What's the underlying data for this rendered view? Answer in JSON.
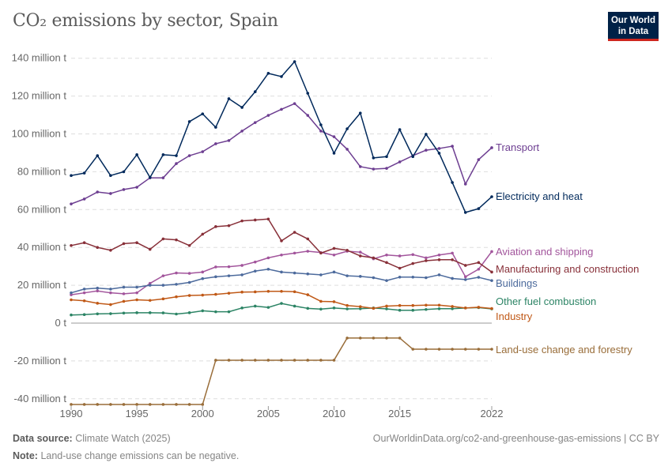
{
  "header": {
    "title": "CO₂ emissions by sector, Spain",
    "logo_line1": "Our World",
    "logo_line2": "in Data"
  },
  "footer": {
    "source_label": "Data source:",
    "source": "Climate Watch (2025)",
    "url": "OurWorldinData.org/co2-and-greenhouse-gas-emissions | CC BY",
    "note_label": "Note:",
    "note": "Land-use change emissions can be negative."
  },
  "chart_data": {
    "type": "line",
    "title": "CO₂ emissions by sector, Spain",
    "ylim": [
      -40,
      140
    ],
    "y_ticks": [
      {
        "v": 140,
        "label": "140 million t"
      },
      {
        "v": 120,
        "label": "120 million t"
      },
      {
        "v": 100,
        "label": "100 million t"
      },
      {
        "v": 80,
        "label": "80 million t"
      },
      {
        "v": 60,
        "label": "60 million t"
      },
      {
        "v": 40,
        "label": "40 million t"
      },
      {
        "v": 20,
        "label": "20 million t"
      },
      {
        "v": 0,
        "label": "0 t"
      },
      {
        "v": -20,
        "label": "-20 million t"
      },
      {
        "v": -40,
        "label": "-40 million t"
      }
    ],
    "x_ticks": [
      "1990",
      "1995",
      "2000",
      "2005",
      "2010",
      "2015",
      "2022"
    ],
    "xlim": [
      1990,
      2022
    ],
    "grid": true,
    "legend": "right-labels",
    "x": [
      1990,
      1991,
      1992,
      1993,
      1994,
      1995,
      1996,
      1997,
      1998,
      1999,
      2000,
      2001,
      2002,
      2003,
      2004,
      2005,
      2006,
      2007,
      2008,
      2009,
      2010,
      2011,
      2012,
      2013,
      2014,
      2015,
      2016,
      2017,
      2018,
      2019,
      2020,
      2021,
      2022
    ],
    "series": [
      {
        "name": "Transport",
        "color": "#6d3e91",
        "values": [
          63,
          65.6,
          69.3,
          68.5,
          70.6,
          71.8,
          76.8,
          76.8,
          84.3,
          88.5,
          90.6,
          94.8,
          96.5,
          101.5,
          106,
          109.8,
          113,
          116,
          109.8,
          101.5,
          98.5,
          91.9,
          82.7,
          81.4,
          81.8,
          85.2,
          88.5,
          91.4,
          92.3,
          93.5,
          73.5,
          86.4,
          92.7
        ]
      },
      {
        "name": "Electricity and heat",
        "color": "#00295b",
        "values": [
          78,
          79.3,
          88.5,
          78,
          80,
          89,
          77,
          89,
          88.5,
          106.5,
          110.6,
          103.5,
          118.6,
          114,
          122.3,
          132,
          130.3,
          138.2,
          121.5,
          104.8,
          89.8,
          102.7,
          111,
          87.3,
          88,
          102.3,
          88,
          99.8,
          89.8,
          74.3,
          58.5,
          60.5,
          66.8
        ]
      },
      {
        "name": "Aviation and shipping",
        "color": "#a2559c",
        "values": [
          15,
          16,
          17,
          16,
          15.5,
          16,
          21,
          25,
          26.5,
          26.3,
          27,
          29.7,
          29.8,
          30.5,
          32.3,
          34.5,
          36,
          37,
          38,
          37.3,
          36,
          38,
          37.5,
          34,
          36,
          35.5,
          36.2,
          34.5,
          36,
          37,
          24.5,
          28.5,
          37.8
        ]
      },
      {
        "name": "Manufacturing and construction",
        "color": "#883039",
        "values": [
          41,
          42.5,
          40,
          38.5,
          42,
          42.5,
          39,
          44.5,
          44,
          41,
          47,
          51,
          51.5,
          54,
          54.5,
          55,
          43.5,
          48,
          44.5,
          37,
          39.5,
          38.5,
          35.5,
          34.5,
          32,
          29,
          31.5,
          33,
          33.5,
          33.5,
          30.5,
          32,
          27
        ]
      },
      {
        "name": "Buildings",
        "color": "#4c6a9c",
        "values": [
          16,
          18,
          18.5,
          18,
          19,
          19,
          20,
          20,
          20.5,
          21.5,
          23.5,
          24.5,
          25,
          25.5,
          27.5,
          28.5,
          27,
          26.5,
          26,
          25.5,
          27,
          25,
          24.7,
          24,
          22.5,
          24.3,
          24.3,
          24,
          25.5,
          23.6,
          23,
          24.2,
          22.5
        ]
      },
      {
        "name": "Other fuel combustion",
        "color": "#2c8465",
        "values": [
          4.3,
          4.5,
          4.9,
          5,
          5.3,
          5.5,
          5.5,
          5.4,
          4.8,
          5.5,
          6.5,
          6,
          6,
          8,
          9,
          8.3,
          10.4,
          9,
          7.8,
          7.4,
          8,
          7.5,
          7.6,
          8,
          7.5,
          6.8,
          6.8,
          7.2,
          7.6,
          7.6,
          8,
          8.2,
          7.5
        ]
      },
      {
        "name": "Industry",
        "color": "#c05917",
        "values": [
          12.3,
          11.8,
          10.5,
          9.8,
          11.5,
          12.3,
          12,
          12.8,
          13.9,
          14.6,
          14.8,
          15.2,
          15.8,
          16.4,
          16.5,
          16.8,
          16.8,
          16.6,
          15,
          11.5,
          11.3,
          9.3,
          8.7,
          7.8,
          9,
          9.3,
          9.3,
          9.5,
          9.5,
          8.8,
          8,
          8.4,
          7.7
        ]
      },
      {
        "name": "Land-use change and forestry",
        "color": "#996d39",
        "values": [
          -43,
          -43,
          -43,
          -43,
          -43,
          -43,
          -43,
          -43,
          -43,
          -43,
          -43,
          -19.6,
          -19.6,
          -19.6,
          -19.6,
          -19.6,
          -19.6,
          -19.6,
          -19.6,
          -19.6,
          -19.6,
          -7.9,
          -7.9,
          -7.9,
          -7.9,
          -7.9,
          -13.8,
          -13.8,
          -13.8,
          -13.8,
          -13.8,
          -13.8,
          -13.8
        ]
      }
    ]
  }
}
